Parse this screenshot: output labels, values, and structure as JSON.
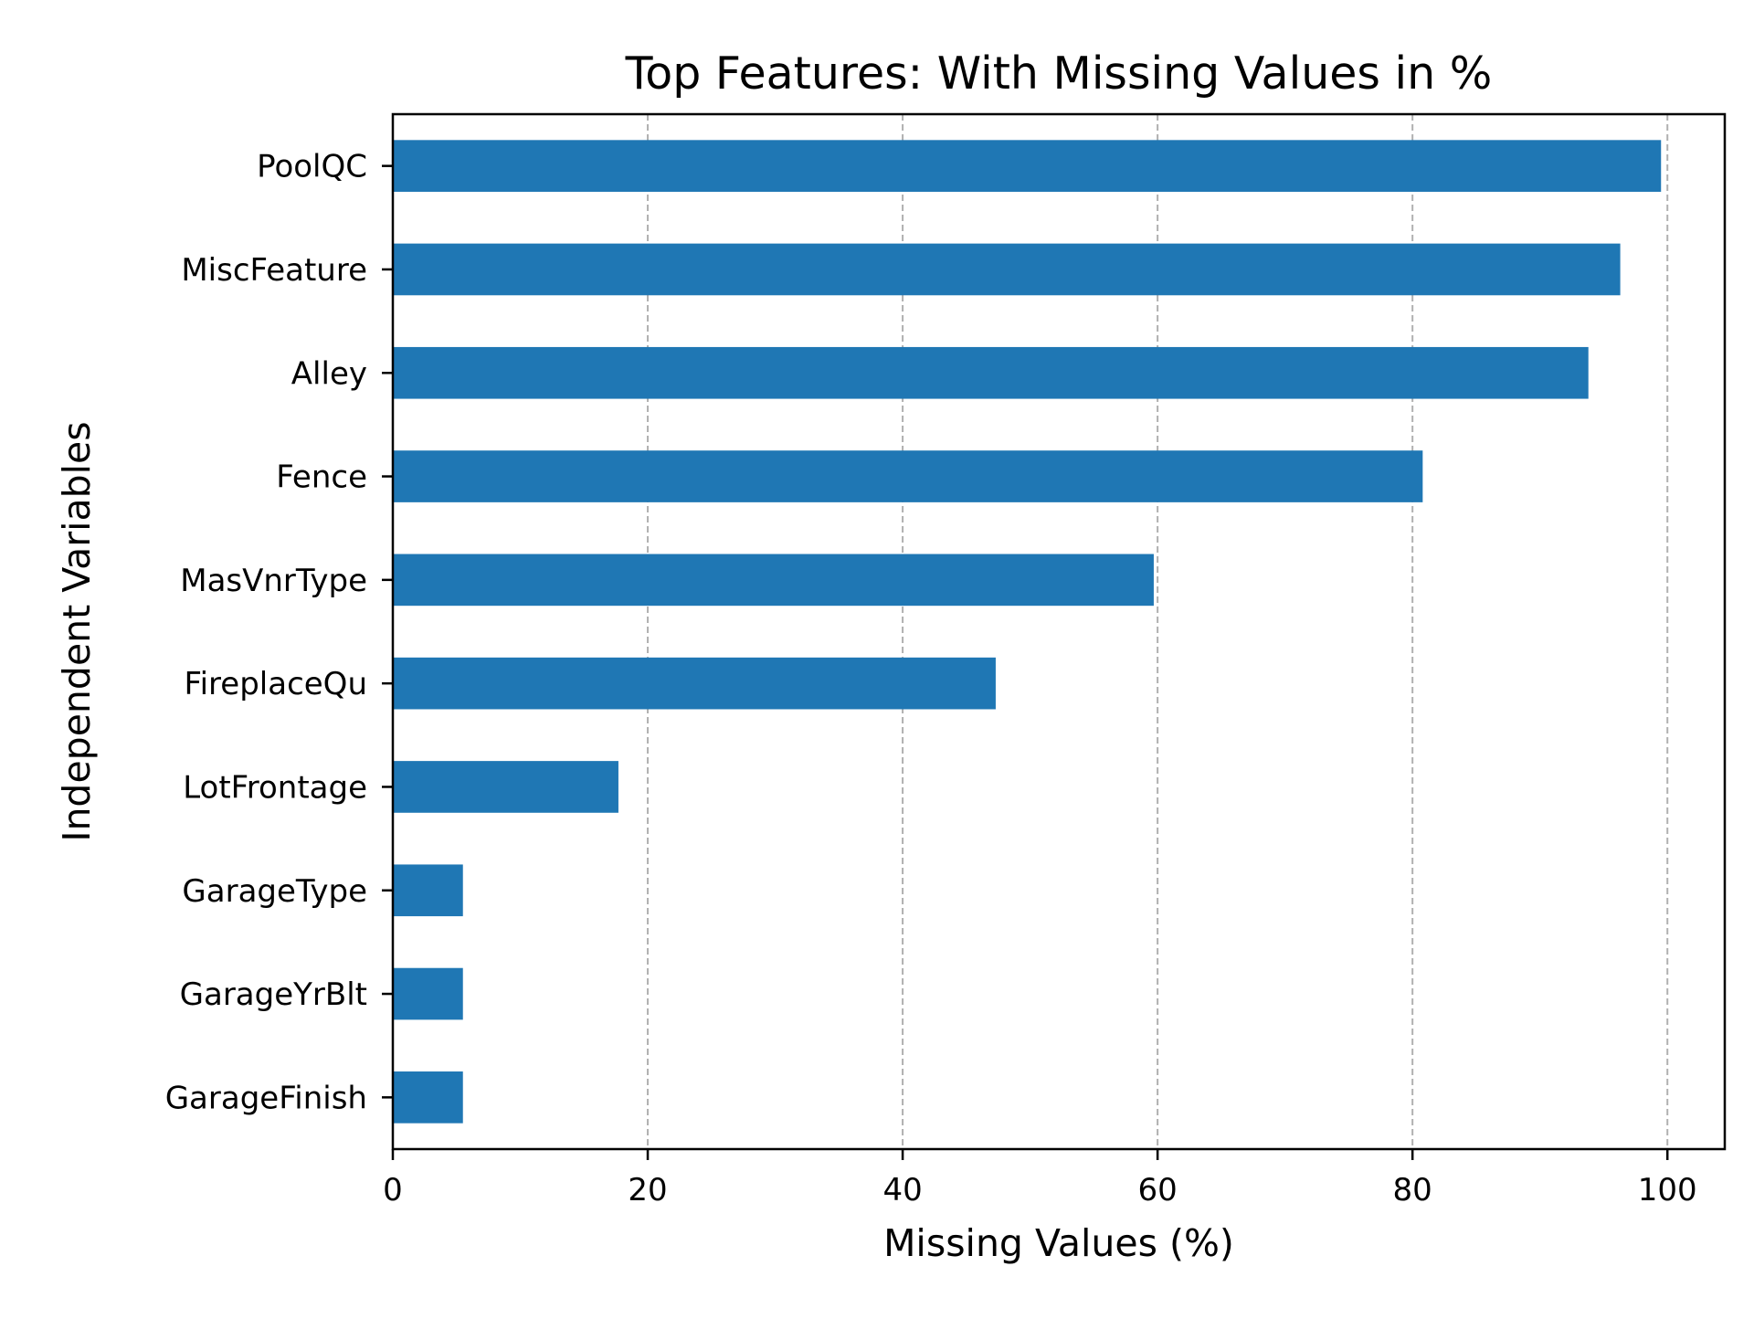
{
  "chart_data": {
    "type": "bar",
    "orientation": "horizontal",
    "title": "Top Features: With Missing Values in %",
    "xlabel": "Missing Values (%)",
    "ylabel": "Independent Variables",
    "categories": [
      "PoolQC",
      "MiscFeature",
      "Alley",
      "Fence",
      "MasVnrType",
      "FireplaceQu",
      "LotFrontage",
      "GarageType",
      "GarageYrBlt",
      "GarageFinish"
    ],
    "values": [
      99.5,
      96.3,
      93.8,
      80.8,
      59.7,
      47.3,
      17.7,
      5.5,
      5.5,
      5.5
    ],
    "xlim": [
      0,
      104.5
    ],
    "xticks": [
      0,
      20,
      40,
      60,
      80,
      100
    ],
    "grid": "x-dashed",
    "bar_color": "#1f77b4",
    "grid_color": "#b0b0b0"
  }
}
